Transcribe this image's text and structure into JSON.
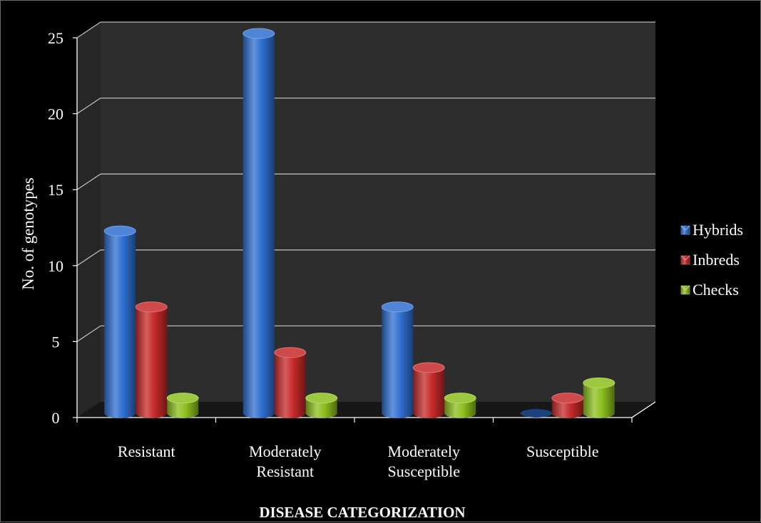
{
  "chart_data": {
    "type": "bar",
    "title": "",
    "xlabel": "DISEASE CATEGORIZATION",
    "ylabel": "No. of genotypes",
    "categories": [
      [
        "Resistant"
      ],
      [
        "Moderately",
        "Resistant"
      ],
      [
        "Moderately",
        "Susceptible"
      ],
      [
        "Susceptible"
      ]
    ],
    "series": [
      {
        "name": "Hybrids",
        "values": [
          12,
          25,
          7,
          0
        ],
        "color": "#2f6fd0"
      },
      {
        "name": "Inbreds",
        "values": [
          7,
          4,
          3,
          1
        ],
        "color": "#c62a2a"
      },
      {
        "name": "Checks",
        "values": [
          1,
          1,
          1,
          2
        ],
        "color": "#8cbf1e"
      }
    ],
    "yticks": [
      0,
      5,
      10,
      15,
      20,
      25
    ],
    "ylim": [
      0,
      25
    ],
    "grid": true,
    "legend_position": "right",
    "style": "3d-cylinder"
  }
}
